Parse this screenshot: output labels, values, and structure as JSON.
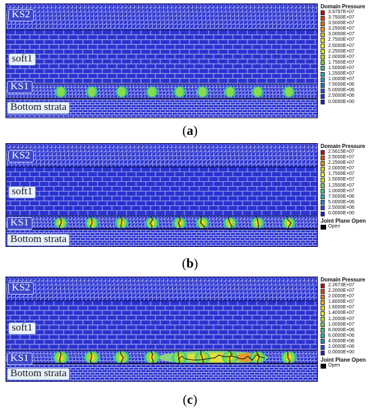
{
  "layers": {
    "ks2": "KS2",
    "soft1": "soft1",
    "ks1": "KS1",
    "bottom": "Bottom strata"
  },
  "legend_title": "Domain Pressure",
  "joint_plane_title": "Joint Plane Open",
  "joint_plane_item": "Open",
  "colors": {
    "mesh_bg": "#2a33d0",
    "mesh_line": "#f4f4ff",
    "frame": "#0a0a55",
    "label_light_bg": "#e8f0ff",
    "label_dark_bg": "#3d47c9"
  },
  "panels": [
    {
      "id": "a",
      "caption_open": "(",
      "caption_letter": "a",
      "caption_close": ")",
      "legend_values": [
        "3.9797E+07",
        "3.7500E+07",
        "3.5000E+07",
        "3.2500E+07",
        "3.0000E+07",
        "2.7500E+07",
        "2.5000E+07",
        "2.2500E+07",
        "2.0000E+07",
        "1.7500E+07",
        "1.5000E+07",
        "1.2500E+07",
        "1.0000E+07",
        "7.5000E+06",
        "5.0000E+06",
        "2.5000E+06",
        "0.0000E+00"
      ],
      "legend_colors": [
        "#d40000",
        "#e83a00",
        "#f06a00",
        "#f59400",
        "#f9b900",
        "#fbd800",
        "#fff000",
        "#d8f000",
        "#a7e600",
        "#6fd63a",
        "#2ec780",
        "#19b6b8",
        "#1a9ad6",
        "#1a78e6",
        "#1a55ee",
        "#1b33f2",
        "#2020d8"
      ],
      "has_joint_legend": false,
      "hotspot_level": 0.35
    },
    {
      "id": "b",
      "caption_open": "(",
      "caption_letter": "b",
      "caption_close": ")",
      "legend_values": [
        "2.5615E+07",
        "2.5000E+07",
        "2.2500E+07",
        "2.0000E+07",
        "1.7500E+07",
        "1.5000E+07",
        "1.2500E+07",
        "1.0000E+07",
        "7.5000E+06",
        "5.0000E+06",
        "2.5000E+06",
        "0.0000E+00"
      ],
      "legend_colors": [
        "#d40000",
        "#ee4a00",
        "#f58a00",
        "#fbc800",
        "#f5f000",
        "#b8ea00",
        "#6fd63a",
        "#2ec780",
        "#19b6b8",
        "#1a88e0",
        "#1a4ff0",
        "#2020d8"
      ],
      "has_joint_legend": true,
      "hotspot_level": 0.6
    },
    {
      "id": "c",
      "caption_open": "(",
      "caption_letter": "c",
      "caption_close": ")",
      "legend_values": [
        "2.2673E+07",
        "2.2000E+07",
        "2.0000E+07",
        "1.8000E+07",
        "1.6000E+07",
        "1.4000E+07",
        "1.2000E+07",
        "1.0000E+07",
        "8.0000E+06",
        "6.0000E+06",
        "4.0000E+06",
        "2.0000E+06",
        "0.0000E+00"
      ],
      "legend_colors": [
        "#d40000",
        "#ea3c00",
        "#f27800",
        "#f8ac00",
        "#fcd800",
        "#e6f000",
        "#a7e600",
        "#5fd24a",
        "#2ec780",
        "#19b6b8",
        "#1a88e0",
        "#1a4ff0",
        "#2020d8"
      ],
      "has_joint_legend": true,
      "hotspot_level": 0.9
    }
  ]
}
